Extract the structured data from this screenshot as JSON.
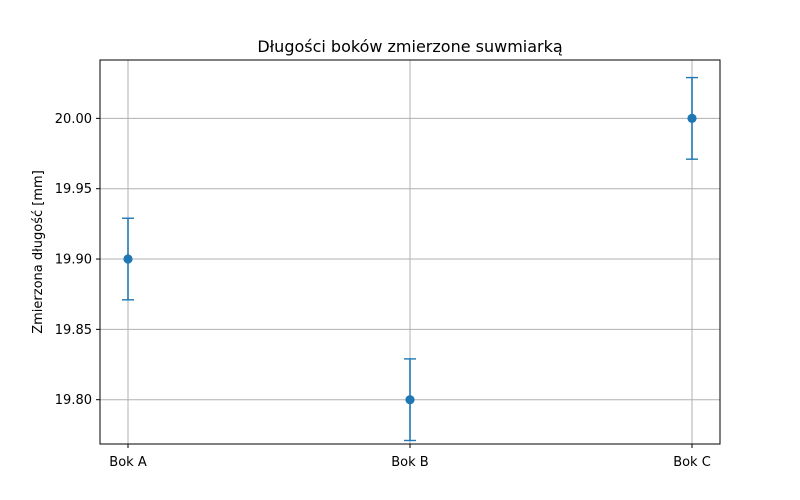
{
  "chart_data": {
    "type": "scatter",
    "title": "Długości boków zmierzone suwmiarką",
    "xlabel": "",
    "ylabel": "Zmierzona długość [mm]",
    "categories": [
      "Bok A",
      "Bok B",
      "Bok C"
    ],
    "series": [
      {
        "values": [
          19.9,
          19.8,
          20.0
        ],
        "errors": [
          0.029,
          0.029,
          0.029
        ],
        "color": "#1f77b4"
      }
    ],
    "ylim": [
      19.7685,
      20.0415
    ],
    "yticks": [
      19.8,
      19.85,
      19.9,
      19.95,
      20.0
    ],
    "ytick_labels": [
      "19.80",
      "19.85",
      "19.90",
      "19.95",
      "20.00"
    ],
    "grid": true
  }
}
